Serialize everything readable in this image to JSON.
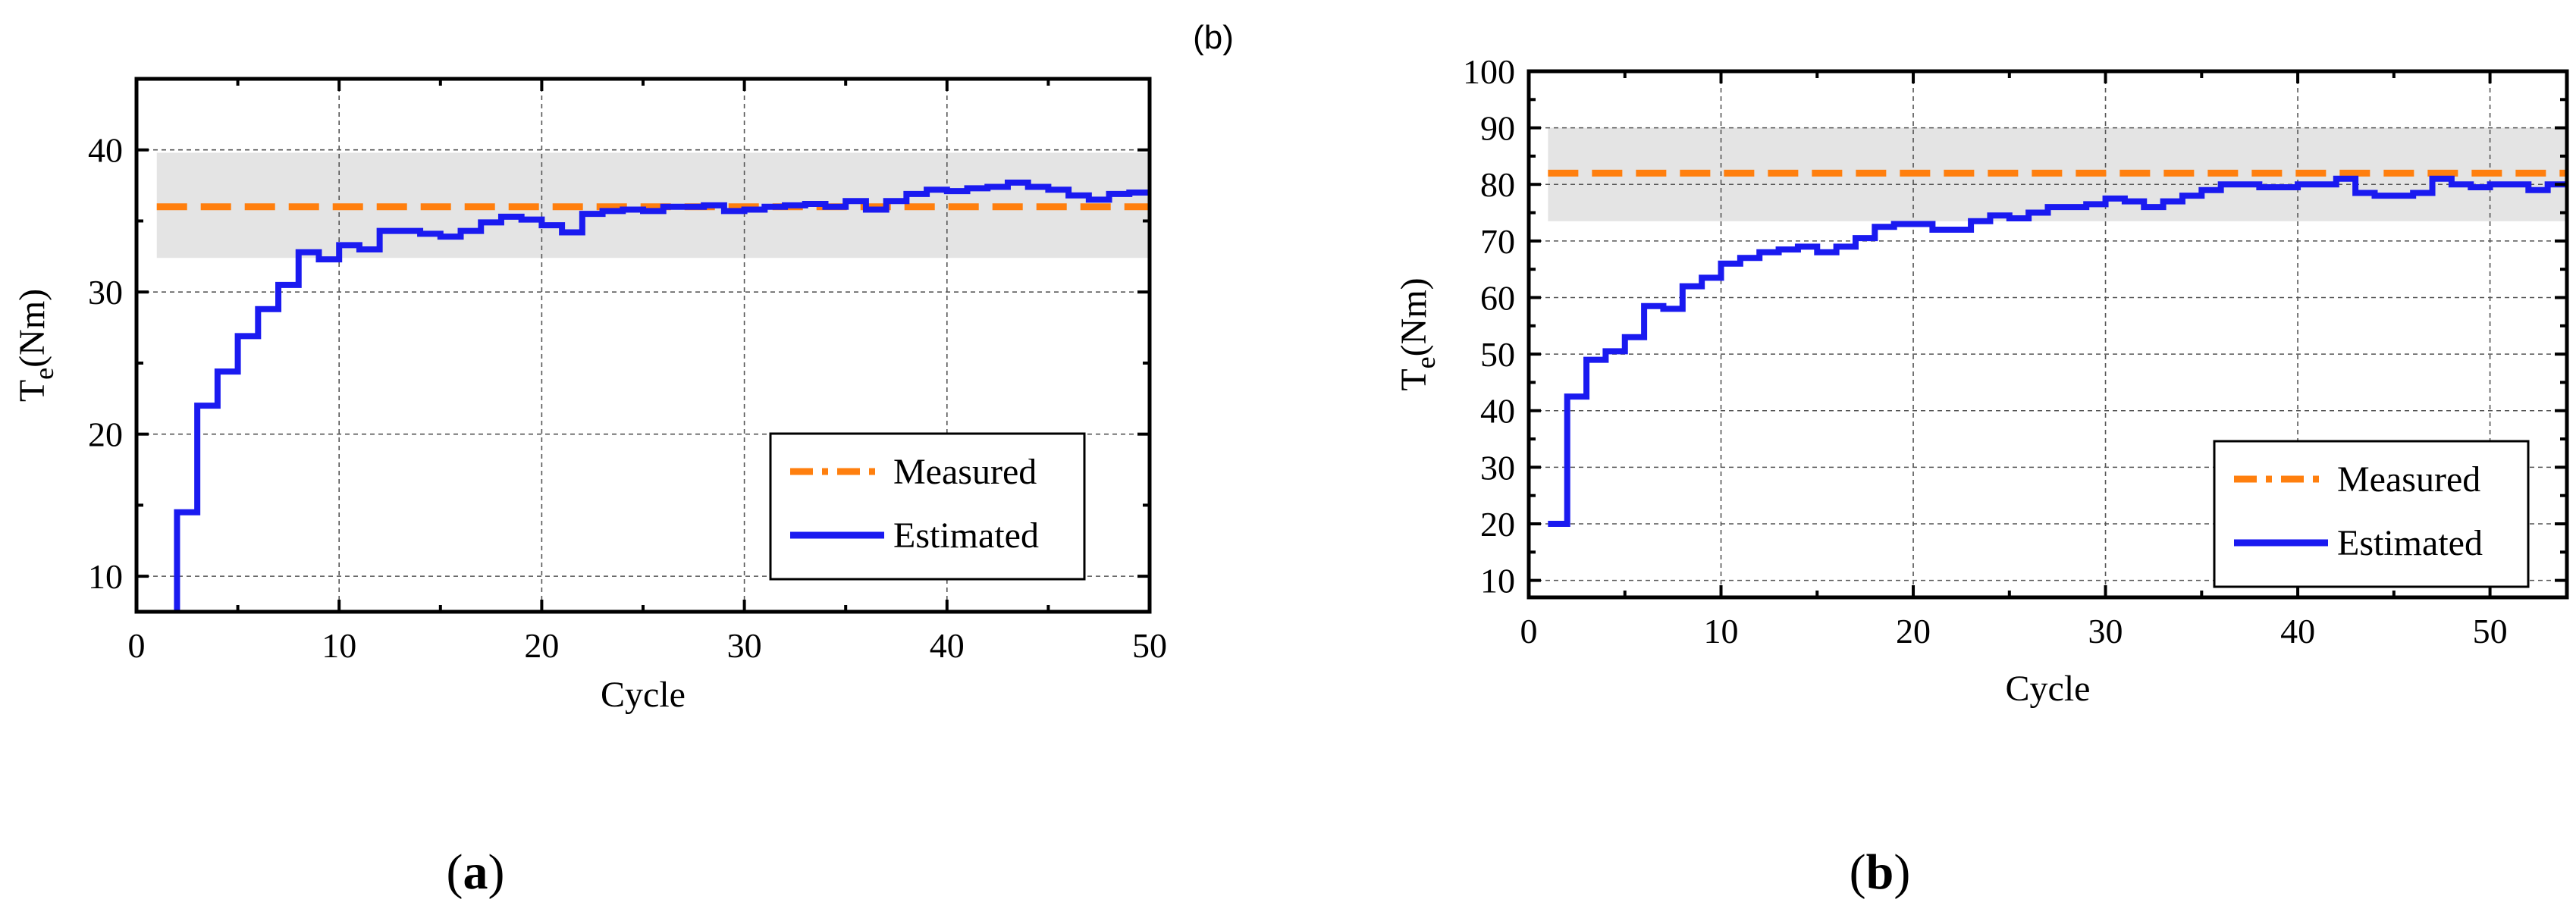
{
  "stray_marker": "(b)",
  "colors": {
    "measured": "#FF7F0E",
    "estimated": "#1A1AF0",
    "band": "#E4E4E4"
  },
  "chart_data": [
    {
      "type": "line",
      "panel_label_pre": "(",
      "panel_label_letter": "a",
      "panel_label_post": ")",
      "title": "",
      "xlabel": "Cycle",
      "ylabel_main": "T",
      "ylabel_sub": "e",
      "ylabel_rest": "(Nm)",
      "xlim": [
        0,
        50
      ],
      "ylim": [
        7.5,
        45
      ],
      "xticks": [
        0,
        10,
        20,
        30,
        40,
        50
      ],
      "yticks": [
        10,
        20,
        30,
        40
      ],
      "grid": true,
      "band": {
        "x0": 1,
        "x1": 50,
        "y0": 32.4,
        "y1": 39.8
      },
      "legend": {
        "position": "bottom-right",
        "entries": [
          "Measured",
          "Estimated"
        ]
      },
      "series": [
        {
          "name": "Measured",
          "style": "dashed",
          "x": [
            1,
            50
          ],
          "y": [
            36,
            36
          ]
        },
        {
          "name": "Estimated",
          "style": "step",
          "x": [
            1.9,
            2,
            3,
            4,
            5,
            6,
            7,
            8,
            9,
            10,
            11,
            12,
            13,
            14,
            15,
            16,
            17,
            18,
            19,
            20,
            21,
            22,
            23,
            24,
            25,
            26,
            27,
            28,
            29,
            30,
            31,
            32,
            33,
            34,
            35,
            36,
            37,
            38,
            39,
            40,
            41,
            42,
            43,
            44,
            45,
            46,
            47,
            48,
            49,
            50
          ],
          "y": [
            7.5,
            14.5,
            22.0,
            24.4,
            26.9,
            28.8,
            30.5,
            32.8,
            32.3,
            33.3,
            33.0,
            34.3,
            34.3,
            34.1,
            33.9,
            34.3,
            34.9,
            35.3,
            35.1,
            34.7,
            34.2,
            35.5,
            35.7,
            35.8,
            35.7,
            36.0,
            36.0,
            36.1,
            35.7,
            35.8,
            36.0,
            36.1,
            36.2,
            36.0,
            36.4,
            35.8,
            36.4,
            36.9,
            37.2,
            37.1,
            37.3,
            37.4,
            37.7,
            37.4,
            37.2,
            36.8,
            36.5,
            36.9,
            37.0,
            37.0
          ]
        }
      ]
    },
    {
      "type": "line",
      "panel_label_pre": "(",
      "panel_label_letter": "b",
      "panel_label_post": ")",
      "title": "",
      "xlabel": "Cycle",
      "ylabel_main": "T",
      "ylabel_sub": "e",
      "ylabel_rest": "(Nm)",
      "xlim": [
        0,
        54
      ],
      "ylim": [
        7,
        100
      ],
      "xticks": [
        0,
        10,
        20,
        30,
        40,
        50
      ],
      "yticks": [
        10,
        20,
        30,
        40,
        50,
        60,
        70,
        80,
        90,
        100
      ],
      "grid": true,
      "band": {
        "x0": 1,
        "x1": 54,
        "y0": 73.5,
        "y1": 90
      },
      "legend": {
        "position": "bottom-right",
        "entries": [
          "Measured",
          "Estimated"
        ]
      },
      "series": [
        {
          "name": "Measured",
          "style": "dashed",
          "x": [
            1,
            54
          ],
          "y": [
            82,
            82
          ]
        },
        {
          "name": "Estimated",
          "style": "step",
          "x": [
            1,
            2,
            3,
            4,
            5,
            6,
            7,
            8,
            9,
            10,
            11,
            12,
            13,
            14,
            15,
            16,
            17,
            18,
            19,
            20,
            21,
            22,
            23,
            24,
            25,
            26,
            27,
            28,
            29,
            30,
            31,
            32,
            33,
            34,
            35,
            36,
            37,
            38,
            39,
            40,
            41,
            42,
            43,
            44,
            45,
            46,
            47,
            48,
            49,
            50,
            51,
            52,
            53,
            54
          ],
          "y": [
            20,
            42.5,
            49,
            50.5,
            53,
            58.5,
            58,
            62,
            63.5,
            66,
            67,
            68,
            68.5,
            69,
            68,
            69,
            70.5,
            72.5,
            73,
            73,
            72,
            72,
            73.5,
            74.5,
            74,
            75,
            76,
            76,
            76.5,
            77.5,
            77,
            76,
            77,
            78,
            79,
            80,
            80,
            79.5,
            79.5,
            80,
            80,
            81,
            78.5,
            78,
            78,
            78.5,
            81,
            80,
            79.5,
            80,
            80,
            79,
            80,
            80
          ]
        }
      ]
    }
  ]
}
